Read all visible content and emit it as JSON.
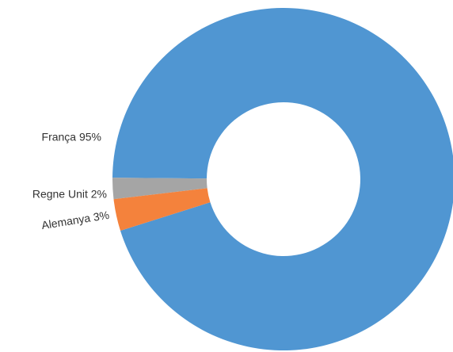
{
  "chart_data": {
    "type": "donut",
    "labels": [
      "França 95%",
      "Regne Unit 2%",
      "Alemanya 3%"
    ],
    "values": [
      95,
      2,
      3
    ],
    "colors": [
      "#5096d2",
      "#a5a5a5",
      "#f4823c"
    ]
  }
}
